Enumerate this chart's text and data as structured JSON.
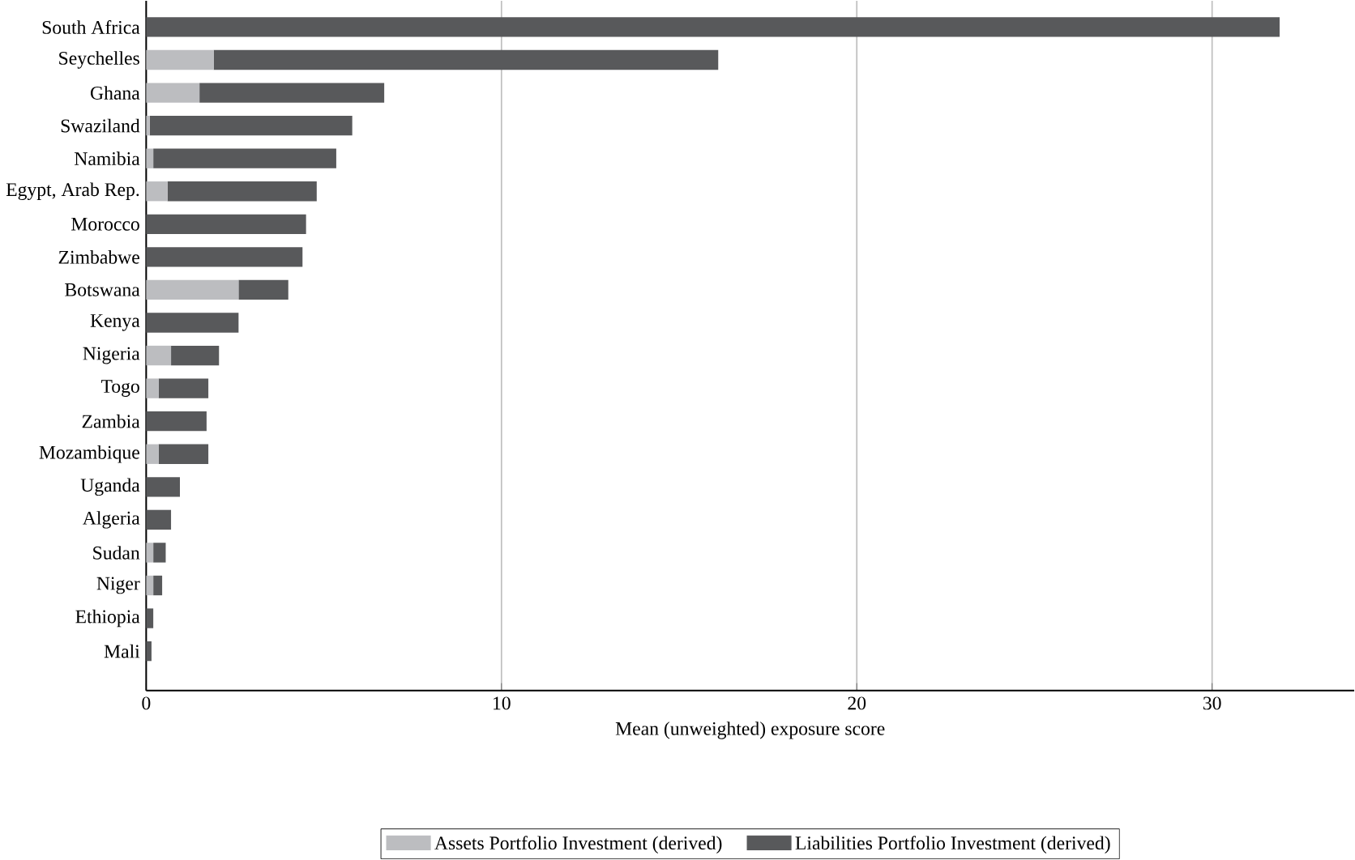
{
  "chart_data": {
    "type": "bar",
    "orientation": "horizontal",
    "stacked": true,
    "xlabel": "Mean (unweighted) exposure score",
    "categories": [
      "South Africa",
      "Seychelles",
      "Ghana",
      "Swaziland",
      "Namibia",
      "Egypt, Arab Rep.",
      "Morocco",
      "Zimbabwe",
      "Botswana",
      "Kenya",
      "Nigeria",
      "Togo",
      "Zambia",
      "Mozambique",
      "Uganda",
      "Algeria",
      "Sudan",
      "Niger",
      "Ethiopia",
      "Mali"
    ],
    "series": [
      {
        "name": "Assets Portfolio Investment (derived)",
        "color": "#bcbdc0",
        "values": [
          0,
          1.9,
          1.5,
          0.1,
          0.2,
          0.6,
          0,
          0,
          2.6,
          0,
          0.7,
          0.35,
          0,
          0.35,
          0,
          0,
          0.2,
          0.2,
          0,
          0
        ]
      },
      {
        "name": "Liabilities Portfolio Investment (derived)",
        "color": "#58595b",
        "values": [
          31.9,
          14.2,
          5.2,
          5.7,
          5.15,
          4.2,
          4.5,
          4.4,
          1.4,
          2.6,
          1.35,
          1.4,
          1.7,
          1.4,
          0.95,
          0.7,
          0.35,
          0.25,
          0.2,
          0.15
        ]
      }
    ],
    "xlim": [
      0,
      34
    ],
    "xticks": [
      0,
      10,
      20,
      30
    ],
    "grid": "x",
    "legend": "bottom"
  }
}
